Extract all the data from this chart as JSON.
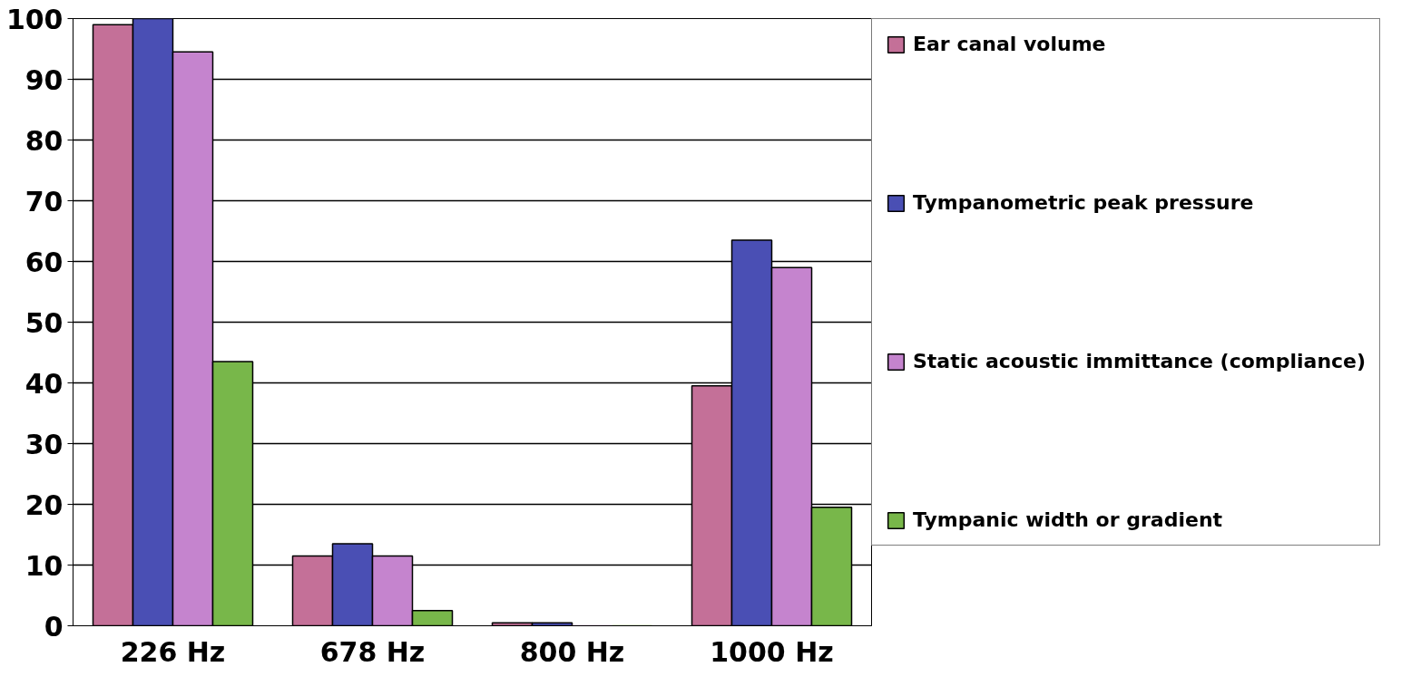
{
  "chart_data": {
    "type": "bar",
    "categories": [
      "226 Hz",
      "678 Hz",
      "800 Hz",
      "1000 Hz"
    ],
    "series": [
      {
        "name": "Ear canal volume",
        "color": "#c47098",
        "values": [
          99,
          11.5,
          0.5,
          39.5
        ]
      },
      {
        "name": "Tympanometric peak pressure",
        "color": "#4a4fb4",
        "values": [
          100,
          13.5,
          0.5,
          63.5
        ]
      },
      {
        "name": "Static acoustic immittance (compliance)",
        "color": "#c584ce",
        "values": [
          94.5,
          11.5,
          0,
          59
        ]
      },
      {
        "name": "Tympanic width or gradient",
        "color": "#78b74a",
        "values": [
          43.5,
          2.5,
          0,
          19.5
        ]
      }
    ],
    "ylim": [
      0,
      100
    ],
    "yticks": [
      0,
      10,
      20,
      30,
      40,
      50,
      60,
      70,
      80,
      90,
      100
    ],
    "grid": "y",
    "legend": "right"
  }
}
